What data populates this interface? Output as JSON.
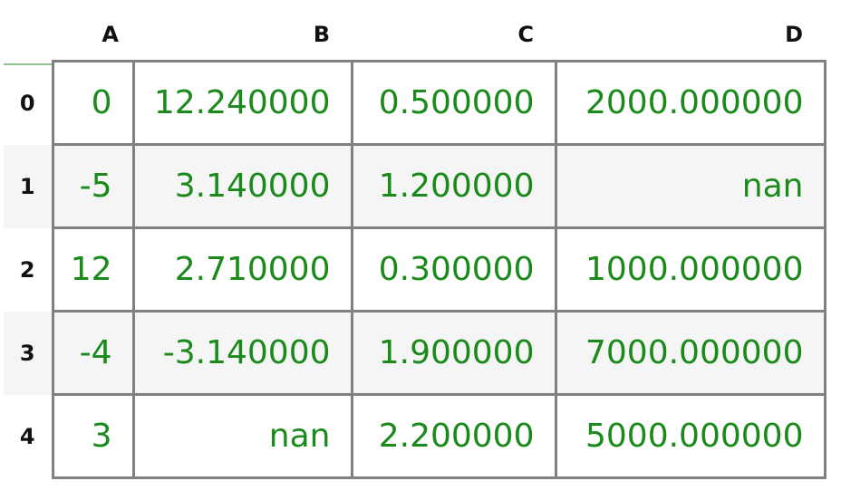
{
  "table": {
    "columns": [
      "A",
      "B",
      "C",
      "D"
    ],
    "rows": [
      {
        "index": "0",
        "cells": [
          "0",
          "12.240000",
          "0.500000",
          "2000.000000"
        ]
      },
      {
        "index": "1",
        "cells": [
          "-5",
          "3.140000",
          "1.200000",
          "nan"
        ]
      },
      {
        "index": "2",
        "cells": [
          "12",
          "2.710000",
          "0.300000",
          "1000.000000"
        ]
      },
      {
        "index": "3",
        "cells": [
          "-4",
          "-3.140000",
          "1.900000",
          "7000.000000"
        ]
      },
      {
        "index": "4",
        "cells": [
          "3",
          "nan",
          "2.200000",
          "5000.000000"
        ]
      }
    ]
  },
  "colors": {
    "value_text": "#1a8a1a",
    "grid_border": "#808080",
    "stripe": "#f5f5f5"
  }
}
